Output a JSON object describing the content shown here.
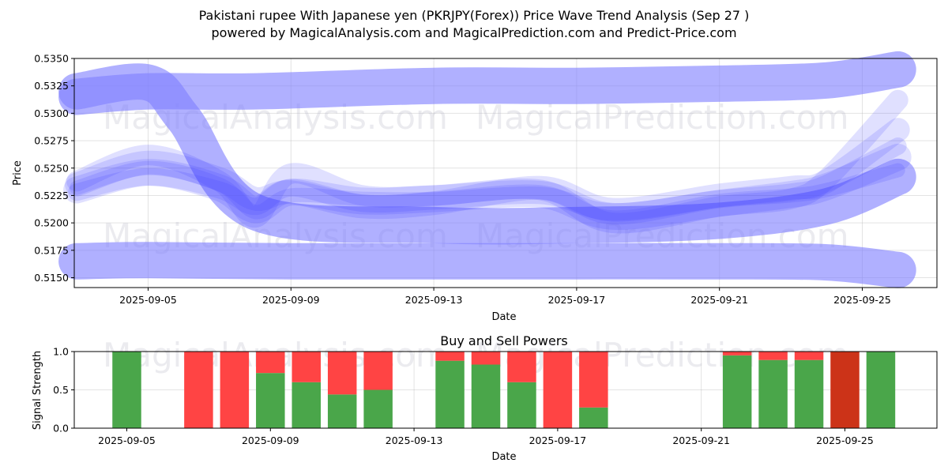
{
  "header": {
    "title": "Pakistani rupee With Japanese yen (PKRJPY(Forex)) Price Wave Trend Analysis (Sep 27 )",
    "subtitle": "powered by MagicalAnalysis.com and MagicalPrediction.com and Predict-Price.com"
  },
  "watermarks": [
    "MagicalAnalysis.com",
    "MagicalPrediction.com"
  ],
  "colors": {
    "wave": "#4040ff",
    "band": "#8080ff",
    "buy": "#4aa64a",
    "sell": "#ff4444",
    "sell_dark": "#cc3318"
  },
  "chart_data": [
    {
      "type": "line",
      "xlabel": "Date",
      "ylabel": "Price",
      "ylim": [
        0.5141,
        0.535
      ],
      "yticks": [
        "0.5150",
        "0.5175",
        "0.5200",
        "0.5225",
        "0.5250",
        "0.5275",
        "0.5300",
        "0.5325",
        "0.5350"
      ],
      "xticks": [
        "2025-09-05",
        "2025-09-09",
        "2025-09-13",
        "2025-09-17",
        "2025-09-21",
        "2025-09-25"
      ],
      "grid": true,
      "bands": [
        {
          "name": "upper",
          "x": [
            "2025-09-03",
            "2025-09-05",
            "2025-09-08",
            "2025-09-13",
            "2025-09-17",
            "2025-09-21",
            "2025-09-24",
            "2025-09-26"
          ],
          "y": [
            0.5315,
            0.532,
            0.532,
            0.5325,
            0.5325,
            0.5327,
            0.533,
            0.534
          ]
        },
        {
          "name": "lower",
          "x": [
            "2025-09-03",
            "2025-09-05",
            "2025-09-09",
            "2025-09-13",
            "2025-09-17",
            "2025-09-21",
            "2025-09-24",
            "2025-09-26"
          ],
          "y": [
            0.5165,
            0.5166,
            0.5165,
            0.5165,
            0.5165,
            0.5165,
            0.5164,
            0.5157
          ]
        },
        {
          "name": "mid-loop",
          "x": [
            "2025-09-03",
            "2025-09-05",
            "2025-09-06",
            "2025-09-08",
            "2025-09-13",
            "2025-09-17",
            "2025-09-21",
            "2025-09-24",
            "2025-09-26"
          ],
          "y": [
            0.532,
            0.5328,
            0.5295,
            0.521,
            0.5198,
            0.5198,
            0.5202,
            0.5215,
            0.5242
          ]
        }
      ],
      "series": [
        {
          "x": [
            "2025-09-03",
            "2025-09-05",
            "2025-09-07",
            "2025-09-08",
            "2025-09-09",
            "2025-09-11",
            "2025-09-13",
            "2025-09-16",
            "2025-09-18",
            "2025-09-21",
            "2025-09-23",
            "2025-09-24",
            "2025-09-26"
          ],
          "y": [
            0.5232,
            0.525,
            0.5235,
            0.521,
            0.5225,
            0.5222,
            0.5222,
            0.5228,
            0.5205,
            0.522,
            0.5225,
            0.523,
            0.5248
          ]
        },
        {
          "x": [
            "2025-09-03",
            "2025-09-05",
            "2025-09-07",
            "2025-09-08",
            "2025-09-09",
            "2025-09-11",
            "2025-09-13",
            "2025-09-16",
            "2025-09-18",
            "2025-09-21",
            "2025-09-23",
            "2025-09-24",
            "2025-09-26"
          ],
          "y": [
            0.5228,
            0.5242,
            0.523,
            0.5215,
            0.5232,
            0.5218,
            0.522,
            0.5225,
            0.521,
            0.5222,
            0.5228,
            0.5236,
            0.527
          ]
        },
        {
          "x": [
            "2025-09-03",
            "2025-09-05",
            "2025-09-07",
            "2025-09-08",
            "2025-09-09",
            "2025-09-11",
            "2025-09-13",
            "2025-09-16",
            "2025-09-18",
            "2025-09-21",
            "2025-09-23",
            "2025-09-24",
            "2025-09-26"
          ],
          "y": [
            0.5238,
            0.5262,
            0.5238,
            0.5205,
            0.5245,
            0.5225,
            0.5225,
            0.523,
            0.52,
            0.5215,
            0.5222,
            0.524,
            0.5312
          ]
        },
        {
          "x": [
            "2025-09-03",
            "2025-09-05",
            "2025-09-07",
            "2025-09-08",
            "2025-09-09",
            "2025-09-11",
            "2025-09-13",
            "2025-09-16",
            "2025-09-18",
            "2025-09-21",
            "2025-09-23",
            "2025-09-24",
            "2025-09-26"
          ],
          "y": [
            0.5235,
            0.5255,
            0.524,
            0.5222,
            0.5228,
            0.5215,
            0.5218,
            0.5232,
            0.5212,
            0.5225,
            0.5232,
            0.5238,
            0.5285
          ]
        },
        {
          "x": [
            "2025-09-03",
            "2025-09-05",
            "2025-09-07",
            "2025-09-08",
            "2025-09-09",
            "2025-09-11",
            "2025-09-13",
            "2025-09-16",
            "2025-09-18",
            "2025-09-21",
            "2025-09-23",
            "2025-09-24",
            "2025-09-26"
          ],
          "y": [
            0.523,
            0.5246,
            0.5232,
            0.5212,
            0.5228,
            0.522,
            0.5222,
            0.5226,
            0.5206,
            0.5218,
            0.5226,
            0.5233,
            0.526
          ]
        }
      ]
    },
    {
      "type": "bar",
      "title": "Buy and Sell Powers",
      "xlabel": "Date",
      "ylabel": "Signal Strength",
      "ylim": [
        0,
        1
      ],
      "yticks": [
        "0.0",
        "0.5",
        "1.0"
      ],
      "xticks": [
        "2025-09-05",
        "2025-09-09",
        "2025-09-13",
        "2025-09-17",
        "2025-09-21",
        "2025-09-25"
      ],
      "categories": [
        "2025-09-05",
        "2025-09-07",
        "2025-09-08",
        "2025-09-09",
        "2025-09-10",
        "2025-09-11",
        "2025-09-12",
        "2025-09-14",
        "2025-09-15",
        "2025-09-16",
        "2025-09-17",
        "2025-09-18",
        "2025-09-22",
        "2025-09-23",
        "2025-09-24",
        "2025-09-25",
        "2025-09-26"
      ],
      "series": [
        {
          "name": "buy",
          "values": [
            1.0,
            0.0,
            0.0,
            0.72,
            0.6,
            0.44,
            0.5,
            0.88,
            0.83,
            0.6,
            0.0,
            0.27,
            0.95,
            0.89,
            0.89,
            0.0,
            1.0
          ]
        },
        {
          "name": "sell",
          "values": [
            0.0,
            1.0,
            1.0,
            0.28,
            0.4,
            0.56,
            0.5,
            0.12,
            0.17,
            0.4,
            1.0,
            0.73,
            0.05,
            0.11,
            0.11,
            1.0,
            0.0
          ]
        }
      ]
    }
  ]
}
